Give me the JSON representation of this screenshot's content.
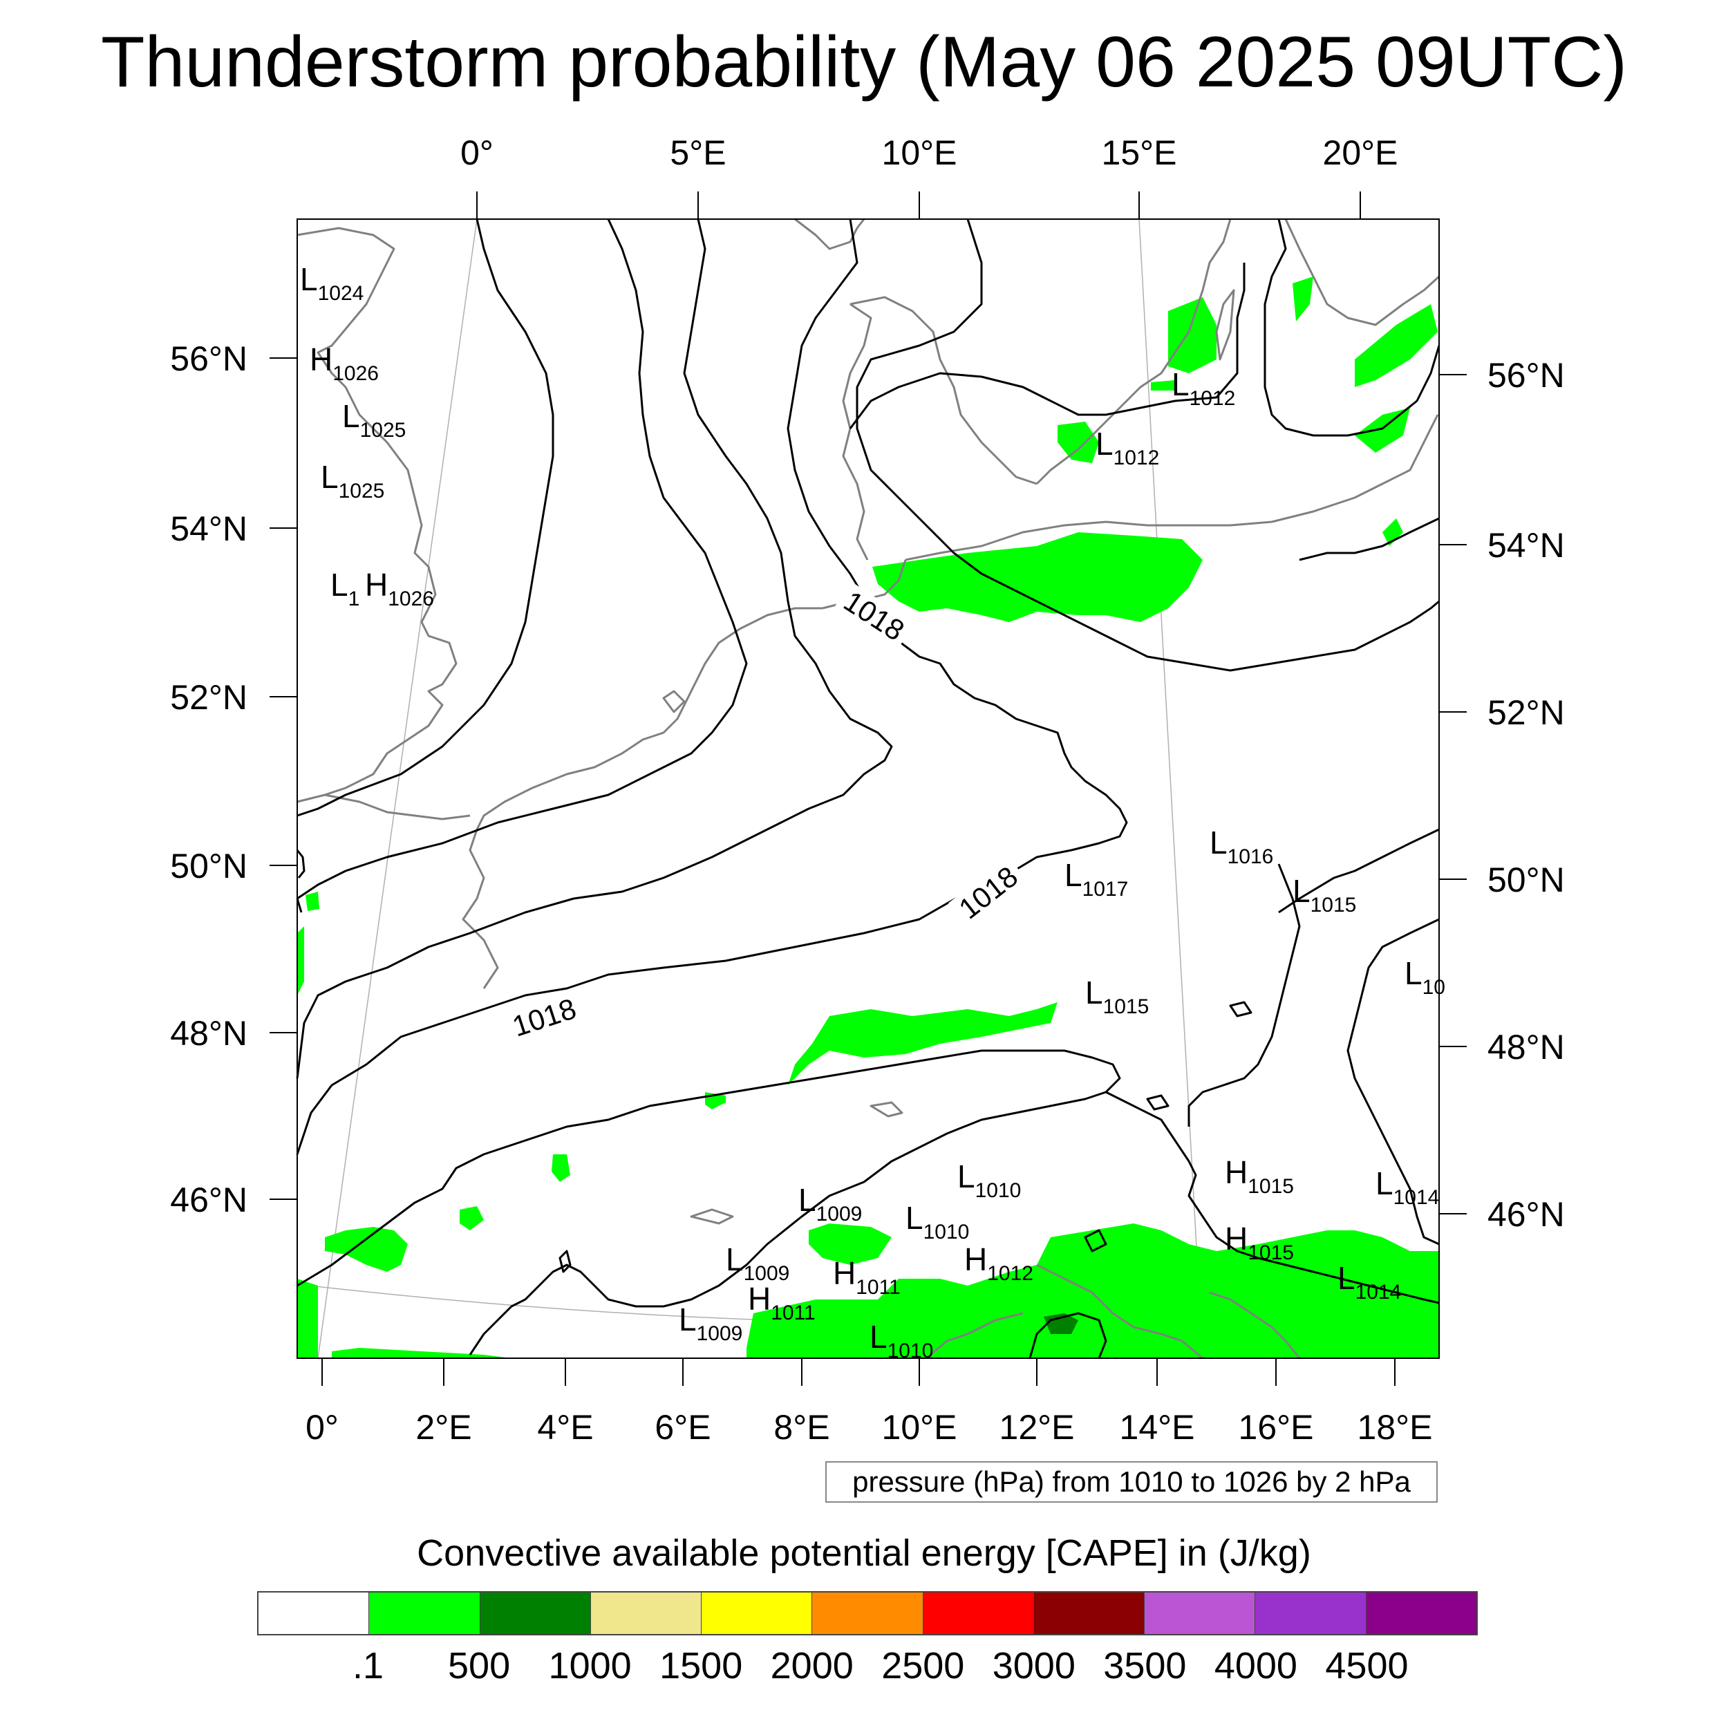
{
  "title": "Thunderstorm probability (May 06 2025 09UTC)",
  "top_lon_labels": [
    "0°",
    "5°E",
    "10°E",
    "15°E",
    "20°E"
  ],
  "left_lat_labels": [
    "56°N",
    "54°N",
    "52°N",
    "50°N",
    "48°N",
    "46°N"
  ],
  "right_lat_labels": [
    "56°N",
    "54°N",
    "52°N",
    "50°N",
    "48°N",
    "46°N"
  ],
  "bottom_lon_labels": [
    "0°",
    "2°E",
    "4°E",
    "6°E",
    "8°E",
    "10°E",
    "12°E",
    "14°E",
    "16°E",
    "18°E"
  ],
  "contour_labels": [
    "1018",
    "1018",
    "1018"
  ],
  "pressure_centers": [
    {
      "type": "L",
      "value": "1024"
    },
    {
      "type": "H",
      "value": "1026"
    },
    {
      "type": "L",
      "value": "1025"
    },
    {
      "type": "L",
      "value": "1025"
    },
    {
      "type": "L",
      "value": "1"
    },
    {
      "type": "H",
      "value": "1026"
    },
    {
      "type": "L",
      "value": "1012"
    },
    {
      "type": "L",
      "value": "1012"
    },
    {
      "type": "L",
      "value": "1016"
    },
    {
      "type": "L",
      "value": "1015"
    },
    {
      "type": "L",
      "value": "1017"
    },
    {
      "type": "L",
      "value": "10"
    },
    {
      "type": "L",
      "value": "1015"
    },
    {
      "type": "H",
      "value": "1015"
    },
    {
      "type": "L",
      "value": "1014"
    },
    {
      "type": "L",
      "value": "1010"
    },
    {
      "type": "L",
      "value": "1009"
    },
    {
      "type": "L",
      "value": "1010"
    },
    {
      "type": "H",
      "value": "1015"
    },
    {
      "type": "L",
      "value": "1009"
    },
    {
      "type": "H",
      "value": "1011"
    },
    {
      "type": "H",
      "value": "1012"
    },
    {
      "type": "L",
      "value": "1014"
    },
    {
      "type": "H",
      "value": "1011"
    },
    {
      "type": "L",
      "value": "1009"
    },
    {
      "type": "L",
      "value": "1010"
    }
  ],
  "pressure_info": "pressure (hPa) from 1010 to 1026 by 2 hPa",
  "colorbar": {
    "title": "Convective available potential energy [CAPE] in (J/kg)",
    "colors": [
      "#ffffff",
      "#00ff00",
      "#008000",
      "#f0e68c",
      "#ffff00",
      "#ff8c00",
      "#ff0000",
      "#8b0000",
      "#ba55d3",
      "#9932cc",
      "#8b008b"
    ],
    "labels": [
      ".1",
      "500",
      "1000",
      "1500",
      "2000",
      "2500",
      "3000",
      "3500",
      "4000",
      "4500"
    ]
  },
  "colors": {
    "coastline": "#808080",
    "isobar": "#000000",
    "cape_low": "#00ff00",
    "cape_mid": "#008000"
  }
}
